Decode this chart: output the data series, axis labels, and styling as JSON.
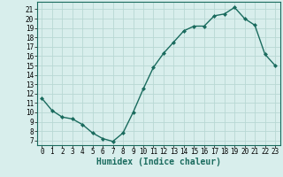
{
  "x": [
    0,
    1,
    2,
    3,
    4,
    5,
    6,
    7,
    8,
    9,
    10,
    11,
    12,
    13,
    14,
    15,
    16,
    17,
    18,
    19,
    20,
    21,
    22,
    23
  ],
  "y": [
    11.5,
    10.2,
    9.5,
    9.3,
    8.7,
    7.8,
    7.2,
    6.9,
    7.8,
    10.0,
    12.5,
    14.8,
    16.3,
    17.5,
    18.7,
    19.2,
    19.2,
    20.3,
    20.5,
    21.2,
    20.0,
    19.3,
    16.2,
    15.0
  ],
  "line_color": "#1a6b5e",
  "marker": "D",
  "marker_size": 2,
  "bg_color": "#d8eeec",
  "grid_color": "#b8d8d4",
  "xlabel": "Humidex (Indice chaleur)",
  "xlim": [
    -0.5,
    23.5
  ],
  "ylim": [
    6.5,
    21.8
  ],
  "xticks": [
    0,
    1,
    2,
    3,
    4,
    5,
    6,
    7,
    8,
    9,
    10,
    11,
    12,
    13,
    14,
    15,
    16,
    17,
    18,
    19,
    20,
    21,
    22,
    23
  ],
  "yticks": [
    7,
    8,
    9,
    10,
    11,
    12,
    13,
    14,
    15,
    16,
    17,
    18,
    19,
    20,
    21
  ],
  "tick_fontsize": 5.5,
  "xlabel_fontsize": 7.0
}
